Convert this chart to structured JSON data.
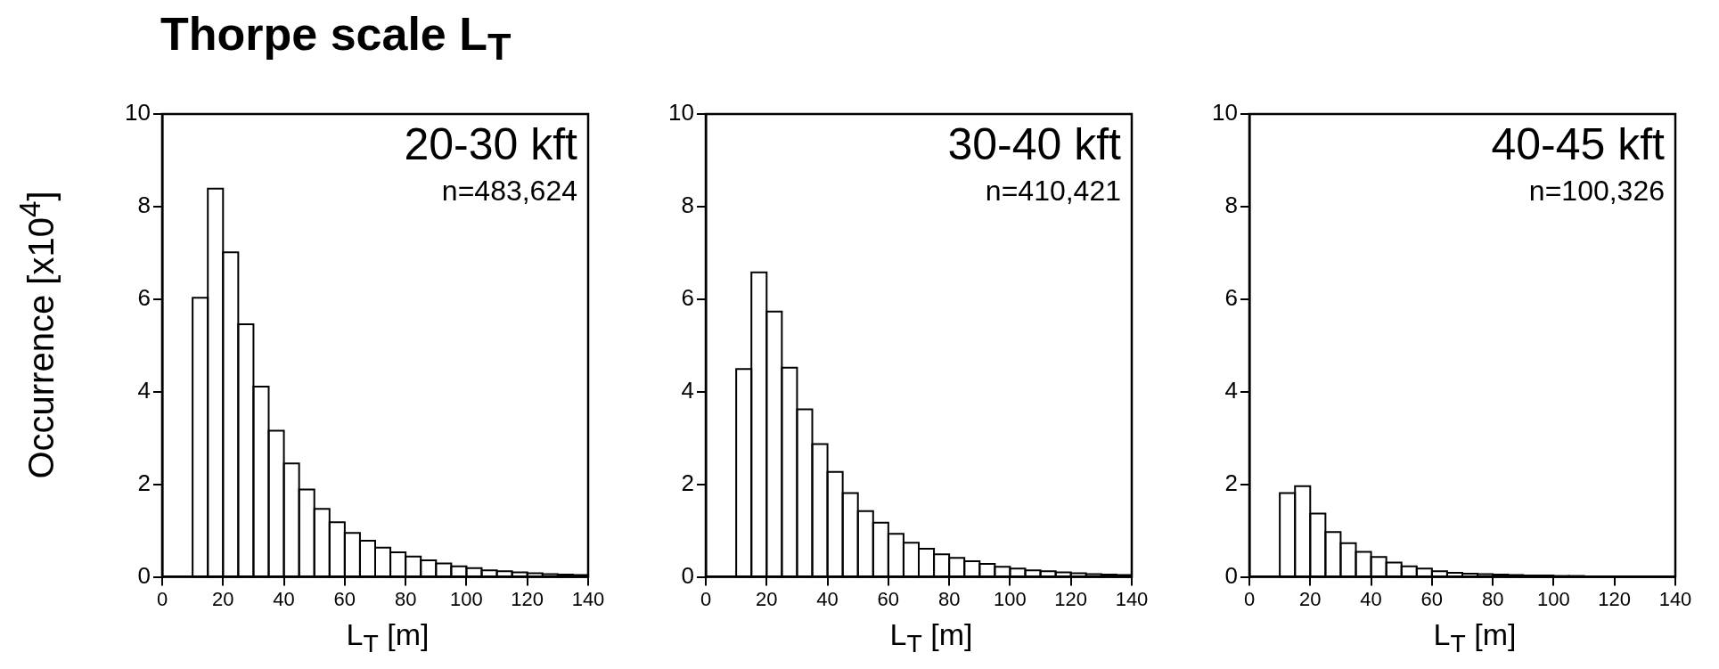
{
  "chart_data": [
    {
      "type": "histogram",
      "title": "Thorpe scale L$_{T}$",
      "xlabel": "L$_{T}$ [m]",
      "ylabel": "Occurrence [x10$^{4}$]",
      "color": "#000000",
      "annotations": [
        "20-30 kft",
        "n=483,624"
      ],
      "bins": [
        10,
        15,
        20,
        25,
        30,
        35,
        40,
        45,
        50,
        55,
        60,
        65,
        70,
        75,
        80,
        85,
        90,
        95,
        100,
        105,
        110,
        115,
        120,
        125,
        130,
        135,
        140
      ],
      "values": [
        6.03,
        8.39,
        7.01,
        5.46,
        4.11,
        3.16,
        2.45,
        1.89,
        1.47,
        1.18,
        0.95,
        0.78,
        0.63,
        0.53,
        0.44,
        0.36,
        0.29,
        0.23,
        0.19,
        0.14,
        0.12,
        0.1,
        0.08,
        0.06,
        0.05,
        0.04
      ],
      "xlim": [
        0,
        140
      ],
      "xticks": [
        0,
        20,
        40,
        60,
        80,
        100,
        120,
        140
      ],
      "ylim": [
        0,
        10
      ],
      "yticks": [
        0,
        2,
        4,
        6,
        8,
        10
      ]
    },
    {
      "type": "histogram",
      "xlabel": "L$_{T}$ [m]",
      "color": "#000000",
      "annotations": [
        "30-40 kft",
        "n=410,421"
      ],
      "bins": [
        10,
        15,
        20,
        25,
        30,
        35,
        40,
        45,
        50,
        55,
        60,
        65,
        70,
        75,
        80,
        85,
        90,
        95,
        100,
        105,
        110,
        115,
        120,
        125,
        130,
        135,
        140
      ],
      "values": [
        4.49,
        6.58,
        5.73,
        4.52,
        3.62,
        2.87,
        2.27,
        1.81,
        1.42,
        1.17,
        0.93,
        0.74,
        0.61,
        0.49,
        0.41,
        0.34,
        0.28,
        0.22,
        0.18,
        0.14,
        0.12,
        0.1,
        0.08,
        0.06,
        0.05,
        0.04
      ],
      "xlim": [
        0,
        140
      ],
      "xticks": [
        0,
        20,
        40,
        60,
        80,
        100,
        120,
        140
      ],
      "ylim": [
        0,
        10
      ],
      "yticks": [
        0,
        2,
        4,
        6,
        8,
        10
      ]
    },
    {
      "type": "histogram",
      "xlabel": "L$_{T}$ [m]",
      "color": "#000000",
      "annotations": [
        "40-45 kft",
        "n=100,326"
      ],
      "bins": [
        10,
        15,
        20,
        25,
        30,
        35,
        40,
        45,
        50,
        55,
        60,
        65,
        70,
        75,
        80,
        85,
        90,
        95,
        100,
        105,
        110,
        115,
        120,
        125,
        130,
        135,
        140
      ],
      "values": [
        1.81,
        1.96,
        1.37,
        0.97,
        0.73,
        0.54,
        0.43,
        0.31,
        0.23,
        0.18,
        0.12,
        0.09,
        0.07,
        0.06,
        0.05,
        0.04,
        0.03,
        0.03,
        0.02,
        0.02,
        0.01,
        0.01,
        0.01,
        0.01,
        0.01,
        0.01
      ],
      "xlim": [
        0,
        140
      ],
      "xticks": [
        0,
        20,
        40,
        60,
        80,
        100,
        120,
        140
      ],
      "ylim": [
        0,
        10
      ],
      "yticks": [
        0,
        2,
        4,
        6,
        8,
        10
      ]
    }
  ]
}
